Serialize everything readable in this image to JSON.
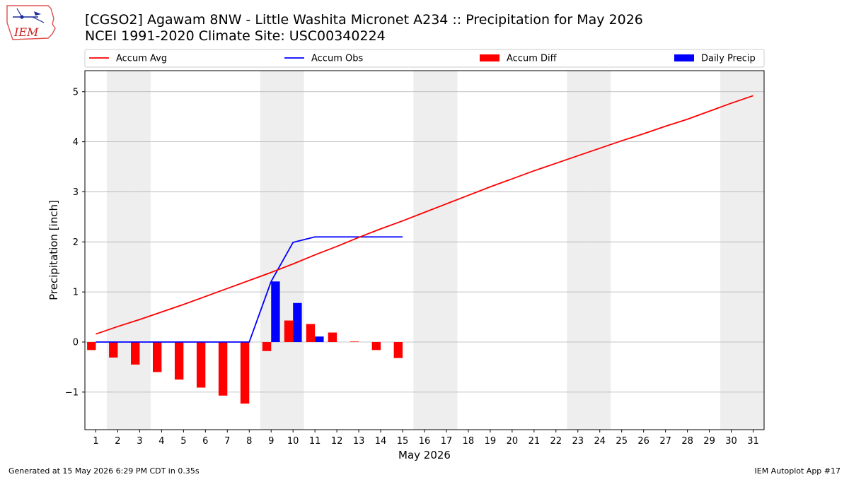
{
  "title_line1": "[CGSO2] Agawam 8NW - Little Washita Micronet A234 :: Precipitation for May 2026",
  "title_line2": "NCEI 1991-2020 Climate Site: USC00340224",
  "logo_text": "IEM",
  "footer_left": "Generated at 15 May 2026 6:29 PM CDT in 0.35s",
  "footer_right": "IEM Autoplot App #17",
  "colors": {
    "accum_avg": "#ff0000",
    "accum_obs": "#0000ff",
    "accum_diff": "#ff0000",
    "daily_precip": "#0000ff",
    "weekend_shade": "#eeeeee",
    "grid": "#b0b0b0"
  },
  "chart_data": {
    "type": "bar",
    "xlabel": "May 2026",
    "ylabel": "Precipitation [inch]",
    "xlim": [
      0.5,
      31.5
    ],
    "ylim": [
      -1.75,
      5.42
    ],
    "yticks": [
      -1,
      0,
      1,
      2,
      3,
      4,
      5
    ],
    "ytick_labels": [
      "−1",
      "0",
      "1",
      "2",
      "3",
      "4",
      "5"
    ],
    "xticks": [
      1,
      2,
      3,
      4,
      5,
      6,
      7,
      8,
      9,
      10,
      11,
      12,
      13,
      14,
      15,
      16,
      17,
      18,
      19,
      20,
      21,
      22,
      23,
      24,
      25,
      26,
      27,
      28,
      29,
      30,
      31
    ],
    "grid": "horizontal",
    "legend_position": "top",
    "weekend_days": [
      2,
      3,
      9,
      10,
      16,
      17,
      23,
      24,
      30,
      31
    ],
    "series": [
      {
        "name": "Accum Avg",
        "kind": "line",
        "x": [
          1,
          2,
          3,
          4,
          5,
          6,
          7,
          8,
          9,
          10,
          11,
          12,
          13,
          14,
          15,
          16,
          17,
          18,
          19,
          20,
          21,
          22,
          23,
          24,
          25,
          26,
          27,
          28,
          29,
          30,
          31
        ],
        "values": [
          0.16,
          0.31,
          0.45,
          0.6,
          0.75,
          0.91,
          1.07,
          1.23,
          1.39,
          1.56,
          1.74,
          1.91,
          2.09,
          2.26,
          2.42,
          2.59,
          2.76,
          2.93,
          3.1,
          3.26,
          3.42,
          3.57,
          3.72,
          3.87,
          4.02,
          4.16,
          4.31,
          4.45,
          4.61,
          4.77,
          4.92
        ]
      },
      {
        "name": "Accum Obs",
        "kind": "line",
        "x": [
          1,
          2,
          3,
          4,
          5,
          6,
          7,
          8,
          9,
          10,
          11,
          12,
          13,
          14,
          15
        ],
        "values": [
          0,
          0,
          0,
          0,
          0,
          0,
          0,
          0,
          1.21,
          1.99,
          2.1,
          2.1,
          2.1,
          2.1,
          2.1
        ]
      },
      {
        "name": "Accum Diff",
        "kind": "bar",
        "x": [
          1,
          2,
          3,
          4,
          5,
          6,
          7,
          8,
          9,
          10,
          11,
          12,
          13,
          14,
          15
        ],
        "values": [
          -0.16,
          -0.31,
          -0.45,
          -0.6,
          -0.75,
          -0.91,
          -1.07,
          -1.23,
          -0.18,
          0.43,
          0.36,
          0.19,
          0.01,
          -0.16,
          -0.32
        ]
      },
      {
        "name": "Daily Precip",
        "kind": "bar",
        "x": [
          1,
          2,
          3,
          4,
          5,
          6,
          7,
          8,
          9,
          10,
          11,
          12,
          13,
          14,
          15
        ],
        "values": [
          0,
          0,
          0,
          0,
          0,
          0,
          0,
          0,
          1.21,
          0.78,
          0.11,
          0,
          0,
          0,
          0
        ]
      }
    ]
  }
}
